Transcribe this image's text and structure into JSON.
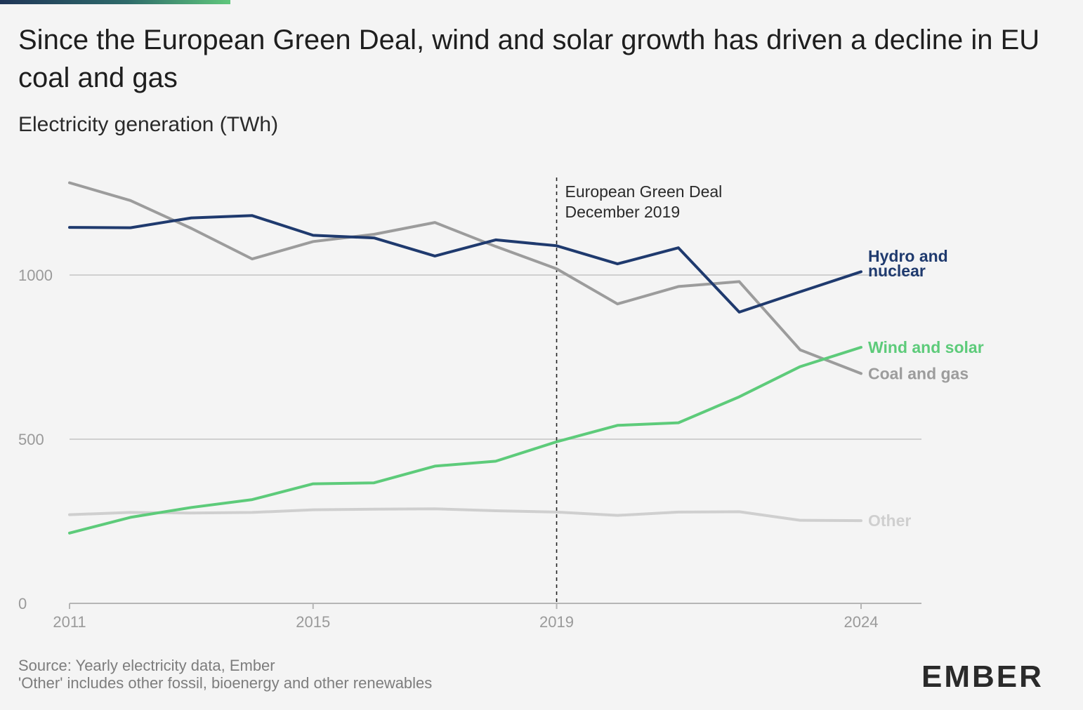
{
  "header": {
    "title": "Since the European Green Deal, wind and solar growth has driven a decline in EU coal and gas",
    "subtitle": "Electricity generation (TWh)"
  },
  "footer": {
    "source": "Source: Yearly electricity data, Ember",
    "note": "'Other' includes other fossil, bioenergy and other renewables"
  },
  "logo": {
    "text": "EMBER"
  },
  "chart_data": {
    "type": "line",
    "title": "Since the European Green Deal, wind and solar growth has driven a decline in EU coal and gas",
    "subtitle": "Electricity generation (TWh)",
    "x": [
      2011,
      2012,
      2013,
      2014,
      2015,
      2016,
      2017,
      2018,
      2019,
      2020,
      2021,
      2022,
      2023,
      2024
    ],
    "xticks": [
      "2011",
      "2015",
      "2019",
      "2024"
    ],
    "yticks": [
      "0",
      "500",
      "1000"
    ],
    "ylim": [
      0,
      1290
    ],
    "xlim": [
      2011,
      2025
    ],
    "grid": "horizontal",
    "annotation": {
      "x": 2019,
      "lines": [
        "European Green Deal",
        "December 2019"
      ]
    },
    "series": [
      {
        "name": "Hydro and nuclear",
        "label_lines": [
          "Hydro and",
          "nuclear"
        ],
        "color": "#1f3a6e",
        "values": [
          1145,
          1144,
          1174,
          1181,
          1121,
          1113,
          1058,
          1107,
          1089,
          1034,
          1083,
          887,
          949,
          1010
        ]
      },
      {
        "name": "Coal and gas",
        "label_lines": [
          "Coal and gas"
        ],
        "color": "#9c9c9c",
        "values": [
          1281,
          1227,
          1142,
          1049,
          1102,
          1124,
          1160,
          1087,
          1019,
          912,
          965,
          980,
          772,
          700
        ]
      },
      {
        "name": "Wind and solar",
        "label_lines": [
          "Wind and solar"
        ],
        "color": "#5dcb7a",
        "values": [
          214,
          262,
          292,
          316,
          364,
          367,
          418,
          433,
          492,
          542,
          550,
          629,
          721,
          780
        ]
      },
      {
        "name": "Other",
        "label_lines": [
          "Other"
        ],
        "color": "#cfcfcf",
        "values": [
          270,
          277,
          275,
          277,
          285,
          287,
          288,
          282,
          278,
          268,
          278,
          279,
          253,
          252
        ]
      }
    ]
  }
}
